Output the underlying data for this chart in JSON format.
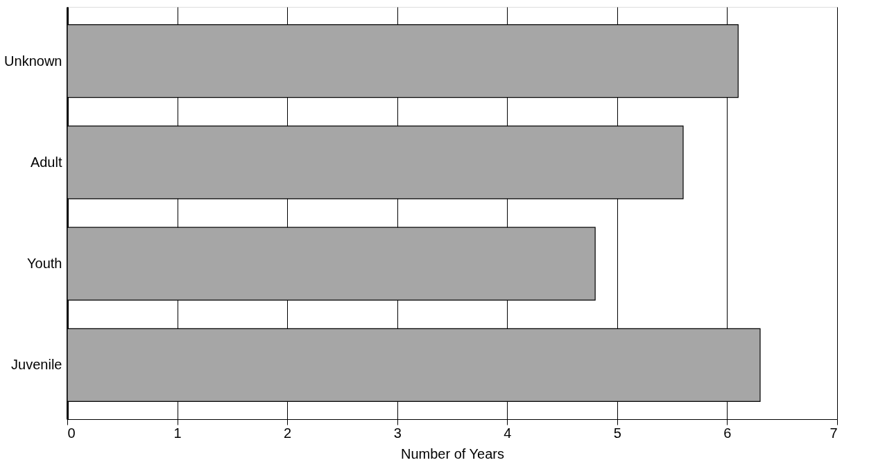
{
  "chart_data": {
    "type": "bar",
    "orientation": "horizontal",
    "categories": [
      "Unknown",
      "Adult",
      "Youth",
      "Juvenile"
    ],
    "values": [
      6.1,
      5.6,
      4.8,
      6.3
    ],
    "color": "#a6a6a6",
    "xlabel": "Number of Years",
    "xlim": [
      0,
      7
    ],
    "xticks": [
      0,
      1,
      2,
      3,
      4,
      5,
      6,
      7
    ],
    "grid": "x"
  }
}
